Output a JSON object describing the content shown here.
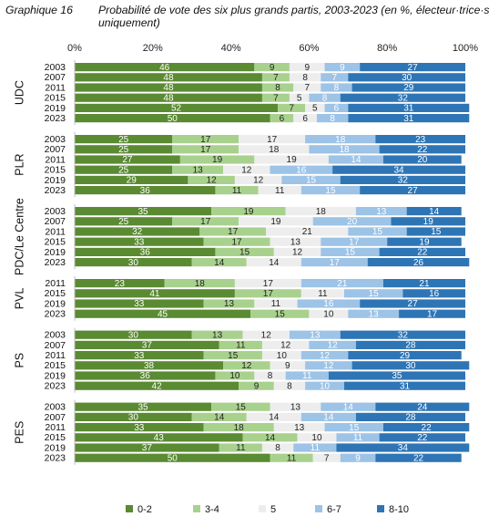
{
  "caption": {
    "label": "Graphique 16",
    "title": "Probabilité de vote des six plus grands partis, 2003-2023 (en %, élec­teur·trice·s uniquement)"
  },
  "chart_data": {
    "type": "bar",
    "orientation": "horizontal",
    "stacked": true,
    "xlim": [
      0,
      100
    ],
    "x_ticks": [
      "0%",
      "20%",
      "40%",
      "60%",
      "80%",
      "100%"
    ],
    "grid": false,
    "legend_position": "bottom",
    "series": [
      {
        "name": "0-2",
        "color": "#5a8a32",
        "label_color": "#ffffff"
      },
      {
        "name": "3-4",
        "color": "#a9d18e",
        "label_color": "#222222"
      },
      {
        "name": "5",
        "color": "#ededed",
        "label_color": "#222222"
      },
      {
        "name": "6-7",
        "color": "#9dc3e6",
        "label_color": "#ffffff"
      },
      {
        "name": "8-10",
        "color": "#2e75b6",
        "label_color": "#ffffff"
      }
    ],
    "groups": [
      {
        "party": "UDC",
        "rows": [
          {
            "year": "2003",
            "values": [
              46,
              9,
              9,
              9,
              27
            ]
          },
          {
            "year": "2007",
            "values": [
              48,
              7,
              8,
              7,
              30
            ]
          },
          {
            "year": "2011",
            "values": [
              48,
              8,
              7,
              8,
              29
            ]
          },
          {
            "year": "2015",
            "values": [
              48,
              7,
              5,
              8,
              32
            ]
          },
          {
            "year": "2019",
            "values": [
              52,
              7,
              5,
              6,
              31
            ]
          },
          {
            "year": "2023",
            "values": [
              50,
              6,
              6,
              8,
              31
            ]
          }
        ]
      },
      {
        "party": "PLR",
        "rows": [
          {
            "year": "2003",
            "values": [
              25,
              17,
              17,
              18,
              23
            ]
          },
          {
            "year": "2007",
            "values": [
              25,
              17,
              18,
              18,
              22
            ]
          },
          {
            "year": "2011",
            "values": [
              27,
              19,
              19,
              14,
              20
            ]
          },
          {
            "year": "2015",
            "values": [
              25,
              13,
              12,
              16,
              34
            ]
          },
          {
            "year": "2019",
            "values": [
              29,
              12,
              12,
              15,
              32
            ]
          },
          {
            "year": "2023",
            "values": [
              36,
              11,
              11,
              15,
              27
            ]
          }
        ]
      },
      {
        "party": "PDC/Le Centre",
        "rows": [
          {
            "year": "2003",
            "values": [
              35,
              19,
              18,
              13,
              14
            ]
          },
          {
            "year": "2007",
            "values": [
              25,
              17,
              19,
              20,
              19
            ]
          },
          {
            "year": "2011",
            "values": [
              32,
              17,
              21,
              15,
              15
            ]
          },
          {
            "year": "2015",
            "values": [
              33,
              17,
              13,
              17,
              19
            ]
          },
          {
            "year": "2019",
            "values": [
              36,
              15,
              12,
              15,
              22
            ]
          },
          {
            "year": "2023",
            "values": [
              30,
              14,
              14,
              17,
              26
            ]
          }
        ]
      },
      {
        "party": "PVL",
        "rows": [
          {
            "year": "2011",
            "values": [
              23,
              18,
              17,
              21,
              21
            ]
          },
          {
            "year": "2015",
            "values": [
              41,
              17,
              11,
              15,
              16
            ]
          },
          {
            "year": "2019",
            "values": [
              33,
              13,
              11,
              16,
              27
            ]
          },
          {
            "year": "2023",
            "values": [
              45,
              15,
              10,
              13,
              17
            ]
          }
        ]
      },
      {
        "party": "PS",
        "rows": [
          {
            "year": "2003",
            "values": [
              30,
              13,
              12,
              13,
              32
            ]
          },
          {
            "year": "2007",
            "values": [
              37,
              11,
              12,
              12,
              28
            ]
          },
          {
            "year": "2011",
            "values": [
              33,
              15,
              10,
              12,
              29
            ]
          },
          {
            "year": "2015",
            "values": [
              38,
              12,
              9,
              12,
              30
            ]
          },
          {
            "year": "2019",
            "values": [
              36,
              10,
              8,
              11,
              35
            ]
          },
          {
            "year": "2023",
            "values": [
              42,
              9,
              8,
              10,
              31
            ]
          }
        ]
      },
      {
        "party": "PES",
        "rows": [
          {
            "year": "2003",
            "values": [
              35,
              15,
              13,
              14,
              24
            ]
          },
          {
            "year": "2007",
            "values": [
              30,
              14,
              14,
              14,
              28
            ]
          },
          {
            "year": "2011",
            "values": [
              33,
              18,
              13,
              15,
              22
            ]
          },
          {
            "year": "2015",
            "values": [
              43,
              14,
              10,
              11,
              22
            ]
          },
          {
            "year": "2019",
            "values": [
              37,
              11,
              8,
              11,
              34
            ]
          },
          {
            "year": "2023",
            "values": [
              50,
              11,
              7,
              9,
              22
            ]
          }
        ]
      }
    ]
  }
}
